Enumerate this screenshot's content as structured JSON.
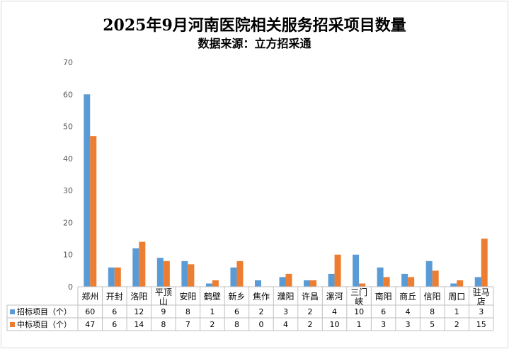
{
  "chart_data": {
    "type": "bar",
    "title": "2025年9月河南医院相关服务招采项目数量",
    "subtitle": "数据来源：立方招采通",
    "categories": [
      "郑州",
      "开封",
      "洛阳",
      "平顶山",
      "安阳",
      "鹤壁",
      "新乡",
      "焦作",
      "濮阳",
      "许昌",
      "漯河",
      "三门峡",
      "南阳",
      "商丘",
      "信阳",
      "周口",
      "驻马店"
    ],
    "category_lines": [
      [
        "郑州"
      ],
      [
        "开封"
      ],
      [
        "洛阳"
      ],
      [
        "平顶",
        "山"
      ],
      [
        "安阳"
      ],
      [
        "鹤壁"
      ],
      [
        "新乡"
      ],
      [
        "焦作"
      ],
      [
        "濮阳"
      ],
      [
        "许昌"
      ],
      [
        "漯河"
      ],
      [
        "三门",
        "峡"
      ],
      [
        "南阳"
      ],
      [
        "商丘"
      ],
      [
        "信阳"
      ],
      [
        "周口"
      ],
      [
        "驻马",
        "店"
      ]
    ],
    "series": [
      {
        "name": "招标项目（个）",
        "color": "#5b9bd5",
        "values": [
          60,
          6,
          12,
          9,
          8,
          1,
          6,
          2,
          3,
          2,
          4,
          10,
          6,
          4,
          8,
          1,
          3
        ]
      },
      {
        "name": "中标项目（个）",
        "color": "#ed7d31",
        "values": [
          47,
          6,
          14,
          8,
          7,
          2,
          8,
          0,
          4,
          2,
          10,
          1,
          3,
          3,
          5,
          2,
          15
        ]
      }
    ],
    "ylim": [
      0,
      70
    ],
    "yticks": [
      0,
      10,
      20,
      30,
      40,
      50,
      60,
      70
    ],
    "grid": false,
    "legend": "data-table"
  }
}
